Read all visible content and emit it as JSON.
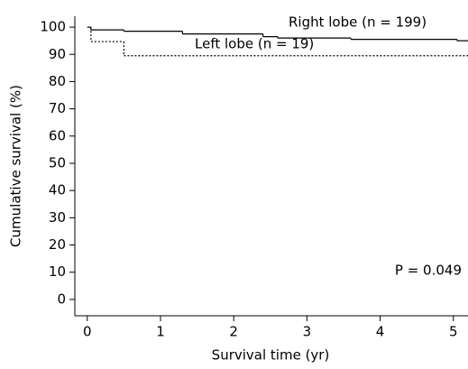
{
  "chart_data": {
    "type": "step",
    "x_label": "Survival time (yr)",
    "y_label": "Cumulative survival (%)",
    "annotation": "P = 0.049",
    "series": [
      {
        "name": "Right lobe (n = 199)",
        "color": "#000000",
        "dash": false,
        "x": [
          0,
          0.05,
          0.5,
          1.3,
          2.4,
          2.6,
          3.6,
          5.05
        ],
        "values": [
          100,
          99,
          98.5,
          97.5,
          96.5,
          96,
          95.5,
          95
        ]
      },
      {
        "name": "Left lobe (n = 19)",
        "color": "#000000",
        "dash": true,
        "x": [
          0,
          0.05,
          0.5
        ],
        "values": [
          100,
          94.7,
          89.5
        ]
      }
    ],
    "xlim": [
      -0.17,
      5.2
    ],
    "ylim": [
      -6,
      104
    ],
    "xticks": [
      0,
      1,
      2,
      3,
      4,
      5
    ],
    "yticks": [
      0,
      10,
      20,
      30,
      40,
      50,
      60,
      70,
      80,
      90,
      100
    ]
  }
}
